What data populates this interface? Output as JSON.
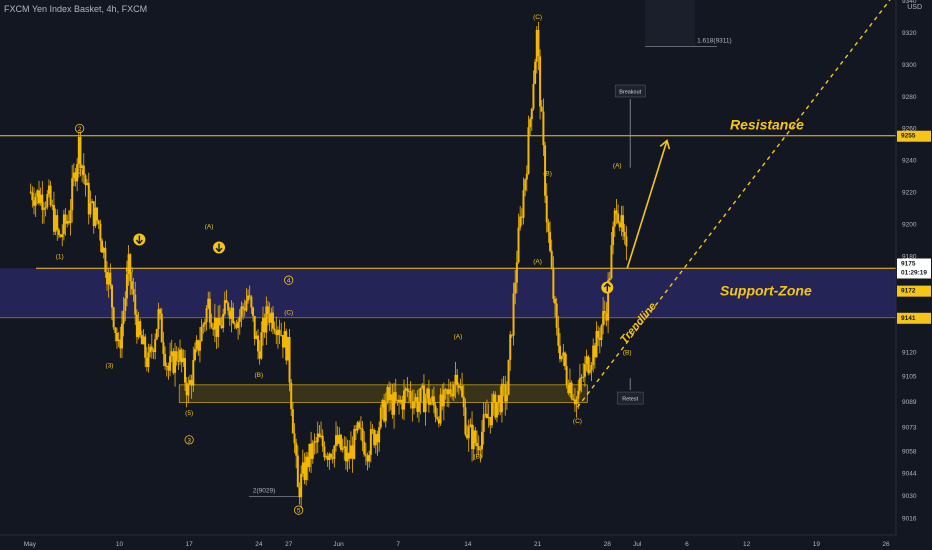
{
  "header": {
    "symbol_line": "FXCM Yen Index Basket, 4h, FXCM",
    "currency": "USD"
  },
  "colors": {
    "background": "#131722",
    "candle": "#f2b705",
    "line": "#f5c518",
    "zone_fill": "#2b2a6a",
    "orange_text": "#f5c518",
    "axis_text": "#b2b5be",
    "trendline_text": "#f5c518",
    "label_bg_white": "#ffffff",
    "badge_bg": "#f5c518"
  },
  "annotations": {
    "resistance": "Resistance",
    "support_zone": "Support-Zone",
    "trendline": "Trendline",
    "breakout": "Breakout",
    "retest": "Retest",
    "fib_label": "1.618(9311)",
    "low_label": "2(9029)",
    "wave_labels": [
      {
        "text": "2",
        "circled": true,
        "date": "May 6",
        "price": 9258
      },
      {
        "text": "(2)",
        "date": "May 6",
        "price": 9231
      },
      {
        "text": "(1)",
        "date": "May 4",
        "price": 9178
      },
      {
        "text": "(4)",
        "date": "May 11",
        "price": 9170
      },
      {
        "text": "(3)",
        "date": "May 9",
        "price": 9110
      },
      {
        "text": "(A)",
        "date": "May 19",
        "price": 9197
      },
      {
        "text": "4",
        "circled": true,
        "date": "May 27",
        "price": 9163
      },
      {
        "text": "(C)",
        "date": "May 27",
        "price": 9143
      },
      {
        "text": "(B)",
        "date": "May 24",
        "price": 9104
      },
      {
        "text": "(5)",
        "date": "May 17",
        "price": 9080
      },
      {
        "text": "3",
        "circled": true,
        "date": "May 17",
        "price": 9063
      },
      {
        "text": "5",
        "circled": true,
        "date": "May 28",
        "price": 9019
      },
      {
        "text": "(A)",
        "date": "Jun 13",
        "price": 9128
      },
      {
        "text": "(B)",
        "date": "Jun 15",
        "price": 9053
      },
      {
        "text": "(C)",
        "date": "Jun 21",
        "price": 9328
      },
      {
        "text": "(B)",
        "date": "Jun 22",
        "price": 9230
      },
      {
        "text": "(A)",
        "date": "Jun 21",
        "price": 9175
      },
      {
        "text": "(C)",
        "date": "Jun 25",
        "price": 9075
      },
      {
        "text": "(A)",
        "date": "Jun 29",
        "price": 9235
      },
      {
        "text": "(B)",
        "date": "Jun 30",
        "price": 9118
      },
      {
        "text": "(C)",
        "date": "Jul 3",
        "price": 9344
      }
    ]
  },
  "price_tags": {
    "resistance": "9255",
    "current": "9175",
    "countdown": "01:29:19",
    "upper_support": "9172",
    "lower_support": "9141"
  },
  "chart_data": {
    "type": "candlestick",
    "title": "FXCM Yen Index Basket, 4h, FXCM",
    "x_axis_ticks": [
      "May",
      "10",
      "17",
      "24",
      "27",
      "Jun",
      "7",
      "14",
      "21",
      "28",
      "Jul",
      "6",
      "12",
      "19",
      "26"
    ],
    "y_axis_ticks": [
      9016,
      9030,
      9044,
      9058,
      9073,
      9089,
      9105,
      9120,
      9140,
      9160,
      9180,
      9200,
      9220,
      9240,
      9260,
      9280,
      9300,
      9320,
      9340
    ],
    "ylim": [
      9010,
      9345
    ],
    "levels": {
      "resistance": 9255,
      "support_zone": [
        9141,
        9172
      ],
      "current_price": 9175
    },
    "price_path": [
      {
        "date": "May 1",
        "price": 9220
      },
      {
        "date": "May 3",
        "price": 9215
      },
      {
        "date": "May 4",
        "price": 9190
      },
      {
        "date": "May 5",
        "price": 9205
      },
      {
        "date": "May 6",
        "price": 9250
      },
      {
        "date": "May 7",
        "price": 9212
      },
      {
        "date": "May 8",
        "price": 9200
      },
      {
        "date": "May 9",
        "price": 9165
      },
      {
        "date": "May 10",
        "price": 9120
      },
      {
        "date": "May 11",
        "price": 9172
      },
      {
        "date": "May 12",
        "price": 9130
      },
      {
        "date": "May 13",
        "price": 9112
      },
      {
        "date": "May 14",
        "price": 9142
      },
      {
        "date": "May 15",
        "price": 9108
      },
      {
        "date": "May 16",
        "price": 9120
      },
      {
        "date": "May 17",
        "price": 9095
      },
      {
        "date": "May 18",
        "price": 9125
      },
      {
        "date": "May 19",
        "price": 9150
      },
      {
        "date": "May 20",
        "price": 9132
      },
      {
        "date": "May 21",
        "price": 9150
      },
      {
        "date": "May 22",
        "price": 9140
      },
      {
        "date": "May 23",
        "price": 9155
      },
      {
        "date": "May 24",
        "price": 9120
      },
      {
        "date": "May 25",
        "price": 9145
      },
      {
        "date": "May 26",
        "price": 9138
      },
      {
        "date": "May 27",
        "price": 9120
      },
      {
        "date": "May 28",
        "price": 9032
      },
      {
        "date": "May 29",
        "price": 9052
      },
      {
        "date": "May 30",
        "price": 9064
      },
      {
        "date": "May 31",
        "price": 9058
      },
      {
        "date": "Jun 1",
        "price": 9062
      },
      {
        "date": "Jun 2",
        "price": 9052
      },
      {
        "date": "Jun 3",
        "price": 9068
      },
      {
        "date": "Jun 4",
        "price": 9060
      },
      {
        "date": "Jun 5",
        "price": 9072
      },
      {
        "date": "Jun 6",
        "price": 9090
      },
      {
        "date": "Jun 7",
        "price": 9085
      },
      {
        "date": "Jun 8",
        "price": 9095
      },
      {
        "date": "Jun 9",
        "price": 9088
      },
      {
        "date": "Jun 10",
        "price": 9092
      },
      {
        "date": "Jun 11",
        "price": 9082
      },
      {
        "date": "Jun 12",
        "price": 9090
      },
      {
        "date": "Jun 13",
        "price": 9108
      },
      {
        "date": "Jun 14",
        "price": 9070
      },
      {
        "date": "Jun 15",
        "price": 9062
      },
      {
        "date": "Jun 16",
        "price": 9078
      },
      {
        "date": "Jun 17",
        "price": 9088
      },
      {
        "date": "Jun 18",
        "price": 9094
      },
      {
        "date": "Jun 19",
        "price": 9180
      },
      {
        "date": "Jun 20",
        "price": 9240
      },
      {
        "date": "Jun 21",
        "price": 9318
      },
      {
        "date": "Jun 22",
        "price": 9205
      },
      {
        "date": "Jun 23",
        "price": 9130
      },
      {
        "date": "Jun 24",
        "price": 9105
      },
      {
        "date": "Jun 25",
        "price": 9090
      },
      {
        "date": "Jun 26",
        "price": 9112
      },
      {
        "date": "Jun 27",
        "price": 9125
      },
      {
        "date": "Jun 28",
        "price": 9148
      },
      {
        "date": "Jun 29",
        "price": 9215
      },
      {
        "date": "Jun 30",
        "price": 9178
      }
    ],
    "support_box": {
      "start": "May 16",
      "end": "Jun 26",
      "low": 9088,
      "high": 9099
    },
    "trendline": {
      "from": {
        "date": "Jun 25",
        "price": 9085
      },
      "to": {
        "date": "Jul 27",
        "price": 9345
      }
    },
    "projection_arrow": {
      "from": {
        "date": "Jun 30",
        "price": 9172
      },
      "to": {
        "date": "Jul 4",
        "price": 9252
      }
    },
    "breakout_marker": {
      "date": "Jun 30",
      "from": 9235,
      "to": 9278
    },
    "retest_marker": {
      "date": "Jun 30",
      "from": 9112,
      "to": 9102
    },
    "fib_marker": {
      "start": "Jul 1",
      "end": "Jul 9",
      "price": 9311
    },
    "low_marker": {
      "start": "May 23",
      "end": "May 28",
      "price": 9029
    },
    "arrow_badges": [
      {
        "date": "May 12",
        "price": 9190,
        "direction": "down"
      },
      {
        "date": "May 20",
        "price": 9185,
        "direction": "down"
      },
      {
        "date": "Jun 28",
        "price": 9160,
        "direction": "up"
      }
    ]
  }
}
